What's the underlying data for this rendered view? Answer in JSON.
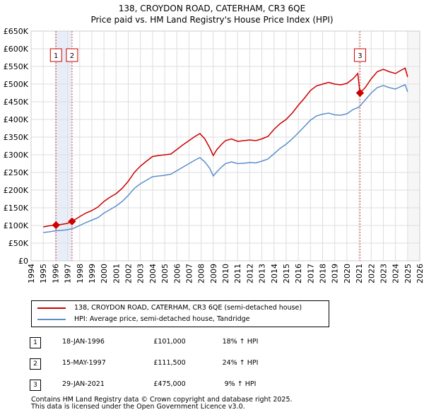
{
  "chart_data": {
    "type": "line",
    "title": "138, CROYDON ROAD, CATERHAM, CR3 6QE",
    "subtitle": "Price paid vs. HM Land Registry's House Price Index (HPI)",
    "xlabel": "",
    "ylabel": "",
    "xlim": [
      1994,
      2026
    ],
    "ylim": [
      0,
      650000
    ],
    "x_ticks": [
      "1994",
      "1995",
      "1996",
      "1997",
      "1998",
      "1999",
      "2000",
      "2001",
      "2002",
      "2003",
      "2004",
      "2005",
      "2006",
      "2007",
      "2008",
      "2009",
      "2010",
      "2011",
      "2012",
      "2013",
      "2014",
      "2015",
      "2016",
      "2017",
      "2018",
      "2019",
      "2020",
      "2021",
      "2022",
      "2023",
      "2024",
      "2025",
      "2026"
    ],
    "y_ticks": [
      {
        "value": 0,
        "label": "£0"
      },
      {
        "value": 50000,
        "label": "£50K"
      },
      {
        "value": 100000,
        "label": "£100K"
      },
      {
        "value": 150000,
        "label": "£150K"
      },
      {
        "value": 200000,
        "label": "£200K"
      },
      {
        "value": 250000,
        "label": "£250K"
      },
      {
        "value": 300000,
        "label": "£300K"
      },
      {
        "value": 350000,
        "label": "£350K"
      },
      {
        "value": 400000,
        "label": "£400K"
      },
      {
        "value": 450000,
        "label": "£450K"
      },
      {
        "value": 500000,
        "label": "£500K"
      },
      {
        "value": 550000,
        "label": "£550K"
      },
      {
        "value": 600000,
        "label": "£600K"
      },
      {
        "value": 650000,
        "label": "£650K"
      }
    ],
    "grid": true,
    "legend_position": "bottom",
    "shaded_ranges": [
      [
        1996.05,
        1997.37
      ]
    ],
    "series": [
      {
        "name": "138, CROYDON ROAD, CATERHAM, CR3 6QE (semi-detached house)",
        "color": "#cc0000",
        "points": [
          [
            1995.0,
            96000
          ],
          [
            1995.5,
            99000
          ],
          [
            1996.05,
            101000
          ],
          [
            1996.5,
            103000
          ],
          [
            1997.0,
            106000
          ],
          [
            1997.37,
            111500
          ],
          [
            1998.0,
            125000
          ],
          [
            1998.5,
            135000
          ],
          [
            1999.0,
            142000
          ],
          [
            1999.5,
            152000
          ],
          [
            2000.0,
            168000
          ],
          [
            2000.5,
            180000
          ],
          [
            2001.0,
            190000
          ],
          [
            2001.5,
            205000
          ],
          [
            2002.0,
            225000
          ],
          [
            2002.5,
            250000
          ],
          [
            2003.0,
            268000
          ],
          [
            2003.5,
            282000
          ],
          [
            2004.0,
            295000
          ],
          [
            2004.5,
            298000
          ],
          [
            2005.0,
            300000
          ],
          [
            2005.5,
            302000
          ],
          [
            2006.0,
            315000
          ],
          [
            2006.5,
            328000
          ],
          [
            2007.0,
            340000
          ],
          [
            2007.5,
            352000
          ],
          [
            2007.9,
            360000
          ],
          [
            2008.3,
            345000
          ],
          [
            2008.7,
            320000
          ],
          [
            2009.0,
            298000
          ],
          [
            2009.3,
            315000
          ],
          [
            2009.7,
            330000
          ],
          [
            2010.0,
            340000
          ],
          [
            2010.5,
            345000
          ],
          [
            2011.0,
            338000
          ],
          [
            2011.5,
            340000
          ],
          [
            2012.0,
            342000
          ],
          [
            2012.5,
            340000
          ],
          [
            2013.0,
            345000
          ],
          [
            2013.5,
            352000
          ],
          [
            2014.0,
            372000
          ],
          [
            2014.5,
            388000
          ],
          [
            2015.0,
            400000
          ],
          [
            2015.5,
            418000
          ],
          [
            2016.0,
            440000
          ],
          [
            2016.5,
            460000
          ],
          [
            2017.0,
            482000
          ],
          [
            2017.5,
            495000
          ],
          [
            2018.0,
            500000
          ],
          [
            2018.5,
            505000
          ],
          [
            2019.0,
            500000
          ],
          [
            2019.5,
            498000
          ],
          [
            2020.0,
            502000
          ],
          [
            2020.5,
            515000
          ],
          [
            2020.9,
            530000
          ],
          [
            2021.08,
            475000
          ],
          [
            2021.5,
            490000
          ],
          [
            2022.0,
            515000
          ],
          [
            2022.5,
            535000
          ],
          [
            2023.0,
            542000
          ],
          [
            2023.5,
            535000
          ],
          [
            2024.0,
            530000
          ],
          [
            2024.5,
            540000
          ],
          [
            2024.8,
            545000
          ],
          [
            2025.0,
            520000
          ]
        ]
      },
      {
        "name": "HPI: Average price, semi-detached house, Tandridge",
        "color": "#5b8fcc",
        "points": [
          [
            1995.0,
            80000
          ],
          [
            1995.5,
            82000
          ],
          [
            1996.0,
            85000
          ],
          [
            1996.5,
            86000
          ],
          [
            1997.0,
            88000
          ],
          [
            1997.5,
            92000
          ],
          [
            1998.0,
            100000
          ],
          [
            1998.5,
            108000
          ],
          [
            1999.0,
            115000
          ],
          [
            1999.5,
            122000
          ],
          [
            2000.0,
            135000
          ],
          [
            2000.5,
            145000
          ],
          [
            2001.0,
            155000
          ],
          [
            2001.5,
            168000
          ],
          [
            2002.0,
            185000
          ],
          [
            2002.5,
            205000
          ],
          [
            2003.0,
            218000
          ],
          [
            2003.5,
            228000
          ],
          [
            2004.0,
            238000
          ],
          [
            2004.5,
            240000
          ],
          [
            2005.0,
            242000
          ],
          [
            2005.5,
            245000
          ],
          [
            2006.0,
            255000
          ],
          [
            2006.5,
            265000
          ],
          [
            2007.0,
            275000
          ],
          [
            2007.5,
            285000
          ],
          [
            2007.9,
            292000
          ],
          [
            2008.3,
            280000
          ],
          [
            2008.7,
            262000
          ],
          [
            2009.0,
            240000
          ],
          [
            2009.3,
            252000
          ],
          [
            2009.7,
            266000
          ],
          [
            2010.0,
            275000
          ],
          [
            2010.5,
            280000
          ],
          [
            2011.0,
            275000
          ],
          [
            2011.5,
            276000
          ],
          [
            2012.0,
            278000
          ],
          [
            2012.5,
            277000
          ],
          [
            2013.0,
            282000
          ],
          [
            2013.5,
            288000
          ],
          [
            2014.0,
            303000
          ],
          [
            2014.5,
            318000
          ],
          [
            2015.0,
            330000
          ],
          [
            2015.5,
            345000
          ],
          [
            2016.0,
            362000
          ],
          [
            2016.5,
            380000
          ],
          [
            2017.0,
            398000
          ],
          [
            2017.5,
            410000
          ],
          [
            2018.0,
            415000
          ],
          [
            2018.5,
            418000
          ],
          [
            2019.0,
            413000
          ],
          [
            2019.5,
            412000
          ],
          [
            2020.0,
            416000
          ],
          [
            2020.5,
            428000
          ],
          [
            2021.0,
            435000
          ],
          [
            2021.5,
            455000
          ],
          [
            2022.0,
            475000
          ],
          [
            2022.5,
            490000
          ],
          [
            2023.0,
            496000
          ],
          [
            2023.5,
            490000
          ],
          [
            2024.0,
            486000
          ],
          [
            2024.5,
            494000
          ],
          [
            2024.8,
            498000
          ],
          [
            2025.0,
            478000
          ]
        ]
      }
    ],
    "sales": [
      {
        "id": "1",
        "x": 1996.05,
        "y": 101000,
        "date": "18-JAN-1996",
        "price": "£101,000",
        "hpi": "18% ↑ HPI"
      },
      {
        "id": "2",
        "x": 1997.37,
        "y": 111500,
        "date": "15-MAY-1997",
        "price": "£111,500",
        "hpi": "24% ↑ HPI"
      },
      {
        "id": "3",
        "x": 2021.08,
        "y": 475000,
        "date": "29-JAN-2021",
        "price": "£475,000",
        "hpi": "9% ↑ HPI"
      }
    ]
  },
  "footer": {
    "line1": "Contains HM Land Registry data © Crown copyright and database right 2025.",
    "line2": "This data is licensed under the Open Government Licence v3.0."
  }
}
